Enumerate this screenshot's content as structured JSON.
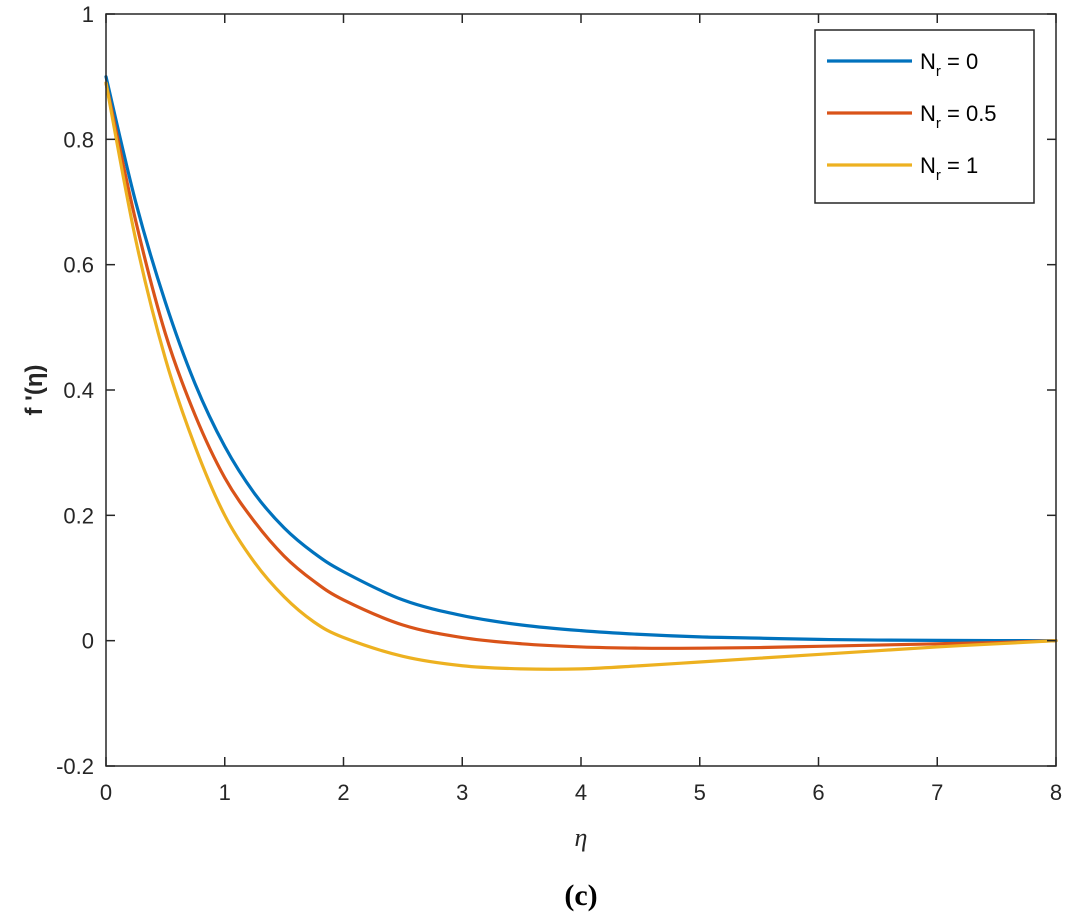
{
  "chart_data": {
    "type": "line",
    "xlabel": "η",
    "ylabel": "f '(η)",
    "caption": "(c)",
    "xlim": [
      0,
      8
    ],
    "ylim": [
      -0.2,
      1
    ],
    "xticks": [
      "0",
      "1",
      "2",
      "3",
      "4",
      "5",
      "6",
      "7",
      "8"
    ],
    "yticks": [
      "-0.2",
      "0",
      "0.2",
      "0.4",
      "0.6",
      "0.8",
      "1"
    ],
    "grid": false,
    "legend_position": "top-right",
    "x": [
      0,
      0.25,
      0.5,
      0.75,
      1,
      1.25,
      1.5,
      1.75,
      2,
      2.5,
      3,
      3.5,
      4,
      4.5,
      5,
      5.5,
      6,
      6.5,
      7,
      7.5,
      8
    ],
    "series": [
      {
        "name": "N_r = 0",
        "legend_main": "N",
        "legend_sub": "r",
        "legend_rest": " = 0",
        "color": "#0072BD",
        "values": [
          0.9,
          0.7,
          0.54,
          0.41,
          0.31,
          0.235,
          0.18,
          0.14,
          0.11,
          0.065,
          0.04,
          0.025,
          0.016,
          0.01,
          0.006,
          0.004,
          0.002,
          0.001,
          0.0005,
          0.0002,
          0
        ]
      },
      {
        "name": "N_r = 0.5",
        "legend_main": "N",
        "legend_sub": "r",
        "legend_rest": " = 0.5",
        "color": "#D95319",
        "values": [
          0.89,
          0.67,
          0.49,
          0.36,
          0.26,
          0.19,
          0.135,
          0.095,
          0.065,
          0.025,
          0.005,
          -0.005,
          -0.01,
          -0.012,
          -0.012,
          -0.011,
          -0.009,
          -0.007,
          -0.005,
          -0.003,
          0
        ]
      },
      {
        "name": "N_r = 1",
        "legend_main": "N",
        "legend_sub": "r",
        "legend_rest": " = 1",
        "color": "#EDB120",
        "values": [
          0.89,
          0.64,
          0.45,
          0.31,
          0.2,
          0.125,
          0.07,
          0.03,
          0.005,
          -0.025,
          -0.04,
          -0.045,
          -0.045,
          -0.04,
          -0.034,
          -0.028,
          -0.022,
          -0.016,
          -0.01,
          -0.005,
          0
        ]
      }
    ]
  }
}
